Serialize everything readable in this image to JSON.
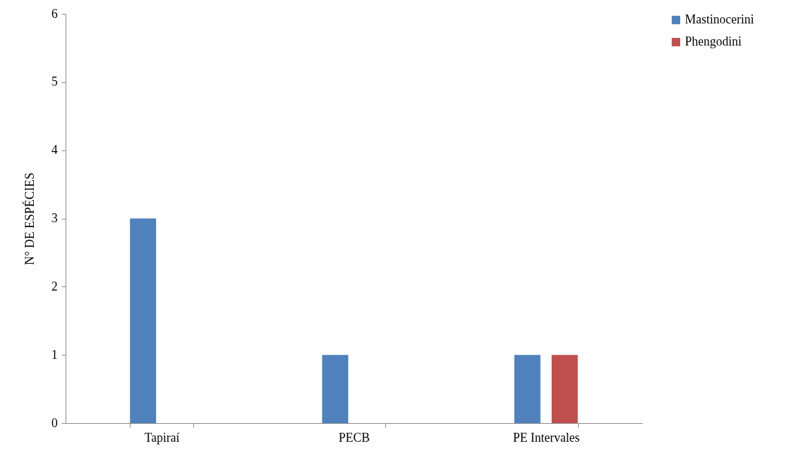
{
  "chart_data": {
    "type": "bar",
    "ylabel": "N° DE ESPÉCIES",
    "categories": [
      "Tapiraí",
      "PECB",
      "PE Intervales"
    ],
    "series": [
      {
        "name": "Mastinocerini",
        "color": "#4f81bd",
        "values": [
          3,
          1,
          1
        ]
      },
      {
        "name": "Phengodini",
        "color": "#c0504d",
        "values": [
          0,
          0,
          1
        ]
      }
    ],
    "ylim": [
      0,
      6
    ],
    "yticks": [
      0,
      1,
      2,
      3,
      4,
      5,
      6
    ],
    "grid": false,
    "legend": "right"
  }
}
